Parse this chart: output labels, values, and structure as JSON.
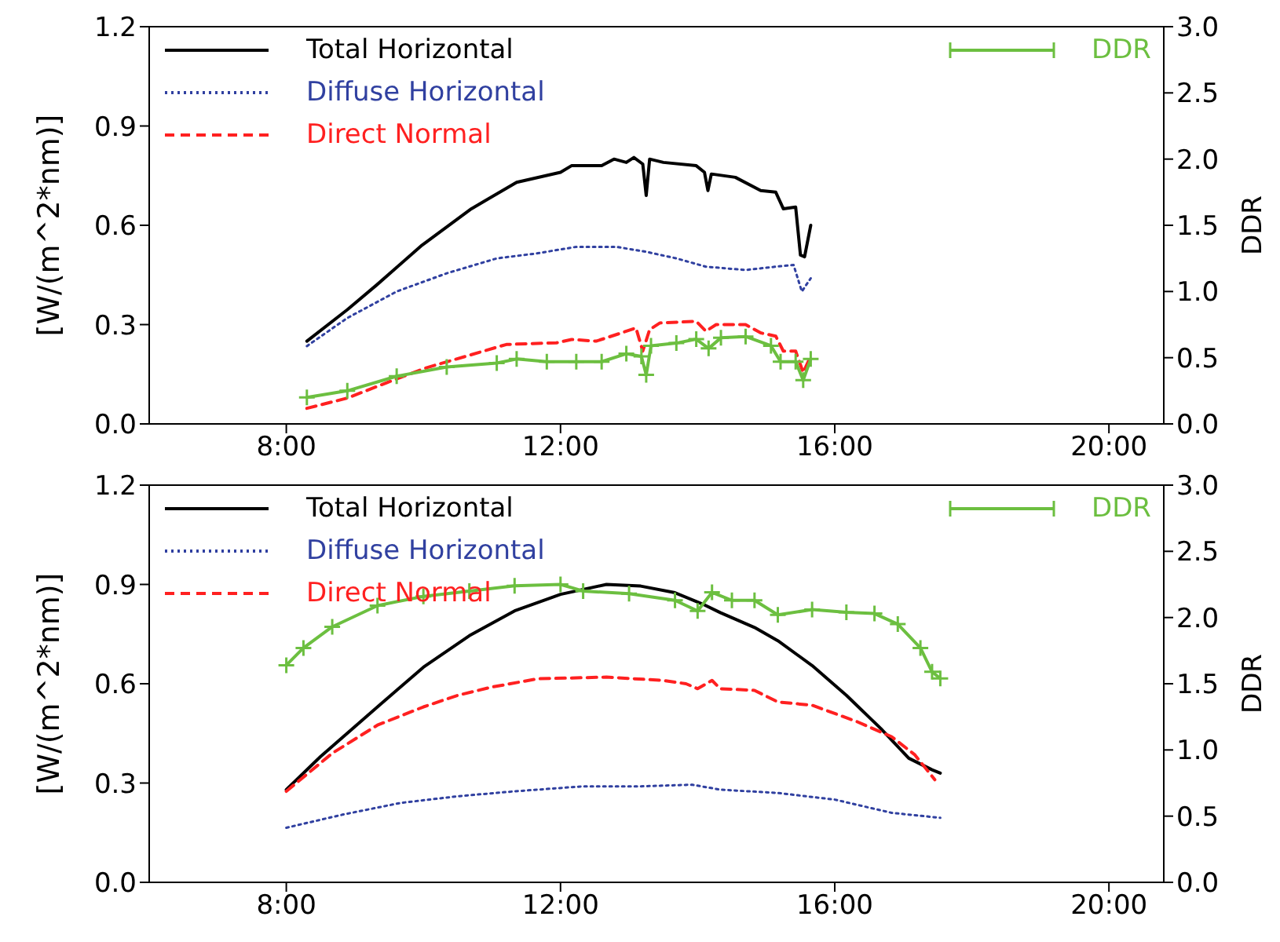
{
  "chart_data": [
    {
      "type": "line",
      "ylabel": "[W/(m^2*nm)]",
      "y2label": "DDR",
      "xlim": [
        6,
        20.8
      ],
      "xticks": [
        {
          "value": 8,
          "label": "8:00"
        },
        {
          "value": 12,
          "label": "12:00"
        },
        {
          "value": 16,
          "label": "16:00"
        },
        {
          "value": 20,
          "label": "20:00"
        }
      ],
      "ylim": [
        0,
        1.2
      ],
      "yticks": [
        {
          "value": 0,
          "label": "0.0"
        },
        {
          "value": 0.3,
          "label": "0.3"
        },
        {
          "value": 0.6,
          "label": "0.6"
        },
        {
          "value": 0.9,
          "label": "0.9"
        },
        {
          "value": 1.2,
          "label": "1.2"
        }
      ],
      "y2lim": [
        0,
        3
      ],
      "y2ticks": [
        {
          "value": 0,
          "label": "0.0"
        },
        {
          "value": 0.5,
          "label": "0.5"
        },
        {
          "value": 1,
          "label": "1.0"
        },
        {
          "value": 1.5,
          "label": "1.5"
        },
        {
          "value": 2,
          "label": "2.0"
        },
        {
          "value": 2.5,
          "label": "2.5"
        },
        {
          "value": 3,
          "label": "3.0"
        }
      ],
      "legend": "top",
      "series": [
        {
          "name": "Total Horizontal",
          "color": "#000000",
          "line_style": "solid",
          "x": [
            8.3,
            8.89,
            9.32,
            9.98,
            10.7,
            11.36,
            12.0,
            12.16,
            12.6,
            12.78,
            12.96,
            13.07,
            13.2,
            13.25,
            13.3,
            13.5,
            13.98,
            14.1,
            14.15,
            14.2,
            14.55,
            14.92,
            15.14,
            15.25,
            15.43,
            15.5,
            15.56,
            15.65
          ],
          "values": [
            0.25,
            0.345,
            0.42,
            0.54,
            0.65,
            0.73,
            0.76,
            0.78,
            0.78,
            0.8,
            0.79,
            0.805,
            0.785,
            0.69,
            0.8,
            0.79,
            0.78,
            0.76,
            0.705,
            0.755,
            0.745,
            0.705,
            0.7,
            0.65,
            0.655,
            0.51,
            0.505,
            0.6
          ]
        },
        {
          "name": "Diffuse Horizontal",
          "color": "#3040a0",
          "line_style": "dotted",
          "x": [
            8.3,
            8.89,
            9.61,
            10.34,
            11.07,
            11.65,
            12.23,
            12.81,
            13.25,
            13.69,
            14.12,
            14.7,
            15.14,
            15.4,
            15.52,
            15.65
          ],
          "values": [
            0.235,
            0.32,
            0.4,
            0.455,
            0.5,
            0.515,
            0.535,
            0.535,
            0.52,
            0.5,
            0.475,
            0.465,
            0.475,
            0.48,
            0.4,
            0.44
          ]
        },
        {
          "name": "Direct Normal",
          "color": "#ff2020",
          "line_style": "dashed",
          "x": [
            8.3,
            8.89,
            9.47,
            10.05,
            10.63,
            11.21,
            11.94,
            12.16,
            12.52,
            12.89,
            13.1,
            13.2,
            13.3,
            13.45,
            13.98,
            14.12,
            14.27,
            14.7,
            14.92,
            15.14,
            15.25,
            15.43,
            15.54,
            15.65
          ],
          "values": [
            0.047,
            0.078,
            0.125,
            0.17,
            0.205,
            0.24,
            0.245,
            0.255,
            0.25,
            0.275,
            0.29,
            0.22,
            0.285,
            0.305,
            0.31,
            0.28,
            0.3,
            0.3,
            0.275,
            0.265,
            0.22,
            0.22,
            0.155,
            0.205
          ]
        },
        {
          "name": "DDR",
          "color": "#6cbf40",
          "line_style": "solid",
          "marker": "cross",
          "axis": "y2",
          "x": [
            8.3,
            8.89,
            9.61,
            10.34,
            11.07,
            11.36,
            11.8,
            12.23,
            12.6,
            12.96,
            13.18,
            13.25,
            13.32,
            13.69,
            13.98,
            14.16,
            14.34,
            14.7,
            15.07,
            15.21,
            15.43,
            15.54,
            15.65
          ],
          "values": [
            0.2,
            0.25,
            0.36,
            0.43,
            0.46,
            0.49,
            0.47,
            0.47,
            0.47,
            0.53,
            0.51,
            0.37,
            0.59,
            0.61,
            0.64,
            0.57,
            0.65,
            0.66,
            0.59,
            0.47,
            0.47,
            0.33,
            0.49
          ]
        }
      ]
    },
    {
      "type": "line",
      "ylabel": "[W/(m^2*nm)]",
      "y2label": "DDR",
      "xlim": [
        6,
        20.8
      ],
      "xticks": [
        {
          "value": 8,
          "label": "8:00"
        },
        {
          "value": 12,
          "label": "12:00"
        },
        {
          "value": 16,
          "label": "16:00"
        },
        {
          "value": 20,
          "label": "20:00"
        }
      ],
      "ylim": [
        0,
        1.2
      ],
      "yticks": [
        {
          "value": 0,
          "label": "0.0"
        },
        {
          "value": 0.3,
          "label": "0.3"
        },
        {
          "value": 0.6,
          "label": "0.6"
        },
        {
          "value": 0.9,
          "label": "0.9"
        },
        {
          "value": 1.2,
          "label": "1.2"
        }
      ],
      "y2lim": [
        0,
        3
      ],
      "y2ticks": [
        {
          "value": 0,
          "label": "0.0"
        },
        {
          "value": 0.5,
          "label": "0.5"
        },
        {
          "value": 1,
          "label": "1.0"
        },
        {
          "value": 1.5,
          "label": "1.5"
        },
        {
          "value": 2,
          "label": "2.0"
        },
        {
          "value": 2.5,
          "label": "2.5"
        },
        {
          "value": 3,
          "label": "3.0"
        }
      ],
      "legend": "top",
      "series": [
        {
          "name": "Total Horizontal",
          "color": "#000000",
          "line_style": "solid",
          "x": [
            8.0,
            8.5,
            9.33,
            10.0,
            10.67,
            11.33,
            12.0,
            12.67,
            13.17,
            13.67,
            14.08,
            14.33,
            14.83,
            15.17,
            15.67,
            16.17,
            16.67,
            17.08,
            17.42,
            17.54
          ],
          "values": [
            0.28,
            0.38,
            0.53,
            0.65,
            0.745,
            0.82,
            0.87,
            0.9,
            0.895,
            0.875,
            0.84,
            0.815,
            0.77,
            0.73,
            0.655,
            0.565,
            0.465,
            0.375,
            0.34,
            0.33
          ]
        },
        {
          "name": "Diffuse Horizontal",
          "color": "#3040a0",
          "line_style": "dotted",
          "x": [
            8.0,
            8.83,
            9.67,
            10.5,
            11.33,
            12.33,
            13.17,
            13.92,
            14.33,
            15.17,
            16.0,
            16.83,
            17.54
          ],
          "values": [
            0.165,
            0.205,
            0.24,
            0.26,
            0.275,
            0.29,
            0.29,
            0.295,
            0.28,
            0.27,
            0.25,
            0.21,
            0.195
          ]
        },
        {
          "name": "Direct Normal",
          "color": "#ff2020",
          "line_style": "dashed",
          "x": [
            8.0,
            8.67,
            9.33,
            10.0,
            10.5,
            11.0,
            11.67,
            12.67,
            13.5,
            13.83,
            14.0,
            14.21,
            14.33,
            14.83,
            15.17,
            15.67,
            16.33,
            16.83,
            17.17,
            17.46
          ],
          "values": [
            0.275,
            0.39,
            0.475,
            0.53,
            0.565,
            0.59,
            0.615,
            0.62,
            0.61,
            0.6,
            0.585,
            0.61,
            0.585,
            0.58,
            0.545,
            0.535,
            0.485,
            0.44,
            0.385,
            0.31
          ]
        },
        {
          "name": "DDR",
          "color": "#6cbf40",
          "line_style": "solid",
          "marker": "cross",
          "axis": "y2",
          "x": [
            8.0,
            8.25,
            8.67,
            9.33,
            10.0,
            10.67,
            11.33,
            12.0,
            12.33,
            13.0,
            13.67,
            14.0,
            14.21,
            14.5,
            14.83,
            15.17,
            15.67,
            16.17,
            16.58,
            16.92,
            17.25,
            17.42,
            17.54
          ],
          "values": [
            1.64,
            1.77,
            1.93,
            2.09,
            2.16,
            2.2,
            2.24,
            2.25,
            2.2,
            2.18,
            2.13,
            2.05,
            2.19,
            2.13,
            2.13,
            2.02,
            2.06,
            2.04,
            2.03,
            1.95,
            1.77,
            1.59,
            1.54
          ]
        }
      ]
    }
  ]
}
